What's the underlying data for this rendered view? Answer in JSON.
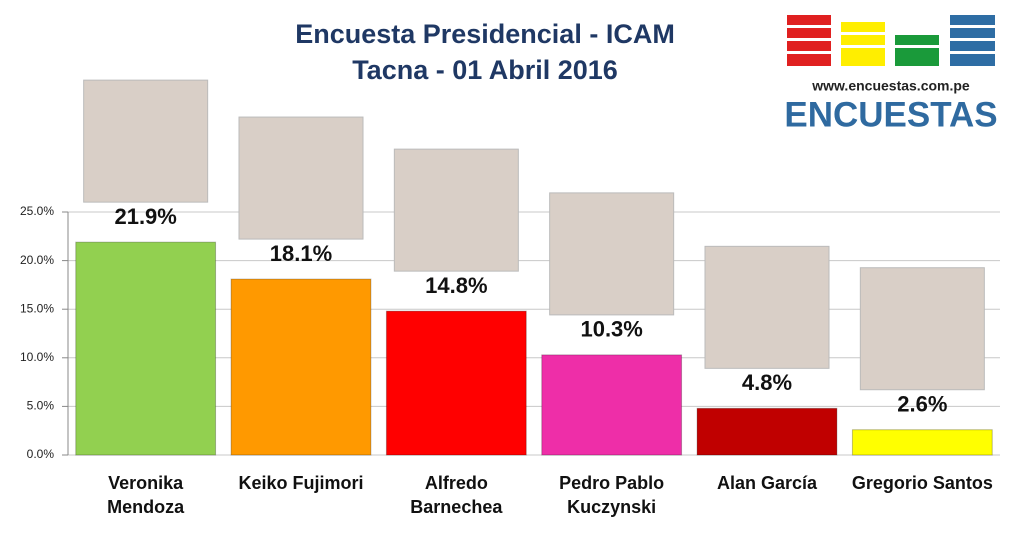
{
  "chart_data": {
    "type": "bar",
    "title": "Encuesta Presidencial - ICAM",
    "subtitle": "Tacna - 01 Abril 2016",
    "categories": [
      "Veronika Mendoza",
      "Keiko Fujimori",
      "Alfredo Barnechea",
      "Pedro Pablo Kuczynski",
      "Alan García",
      "Gregorio Santos"
    ],
    "values": [
      21.9,
      18.1,
      14.8,
      10.3,
      4.8,
      2.6
    ],
    "value_labels": [
      "21.9%",
      "18.1%",
      "14.8%",
      "10.3%",
      "4.8%",
      "2.6%"
    ],
    "colors": [
      "#92d050",
      "#ff9900",
      "#ff0000",
      "#ee2ea8",
      "#c00000",
      "#ffff00"
    ],
    "ylim": [
      0,
      25
    ],
    "yticks": [
      {
        "value": 0,
        "label": "0.0%"
      },
      {
        "value": 5,
        "label": "5.0%"
      },
      {
        "value": 10,
        "label": "10.0%"
      },
      {
        "value": 15,
        "label": "15.0%"
      },
      {
        "value": 20,
        "label": "20.0%"
      },
      {
        "value": 25,
        "label": "25.0%"
      }
    ],
    "grid": true
  },
  "logo": {
    "url": "www.encuestas.com.pe",
    "name": "ENCUESTAS"
  }
}
